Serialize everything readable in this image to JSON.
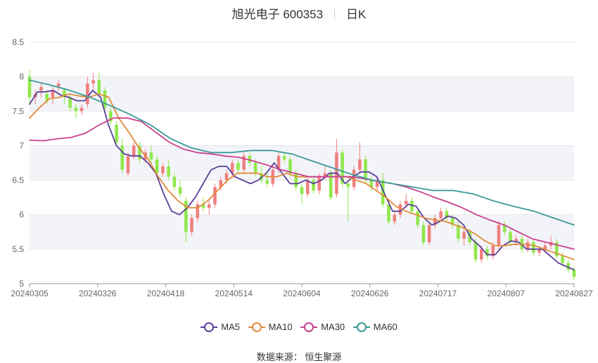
{
  "header": {
    "stock_name": "旭光电子 600353",
    "period": "日K"
  },
  "legend": [
    {
      "label": "MA5",
      "color": "#5b3f99"
    },
    {
      "label": "MA10",
      "color": "#e08a3a"
    },
    {
      "label": "MA30",
      "color": "#c9418f"
    },
    {
      "label": "MA60",
      "color": "#3a9a99"
    }
  ],
  "source": "数据来源： 恒生聚源",
  "colors": {
    "up": "#f07f7f",
    "down": "#8fe84a",
    "grid": "#e6e6e6",
    "band": "#f3f4f9",
    "axis": "#666666"
  },
  "chart_data": {
    "type": "candlestick",
    "ylim": [
      5,
      8.5
    ],
    "yticks": [
      "8.5",
      "8",
      "7.5",
      "7",
      "6.5",
      "6",
      "5.5",
      "5"
    ],
    "xticks": [
      "20240305",
      "20240326",
      "20240418",
      "20240514",
      "20240604",
      "20240626",
      "20240717",
      "20240807",
      "20240827"
    ],
    "ohlc": [
      [
        8.0,
        8.1,
        7.6,
        7.7
      ],
      [
        7.7,
        7.8,
        7.6,
        7.75
      ],
      [
        7.8,
        7.9,
        7.7,
        7.85
      ],
      [
        7.75,
        7.8,
        7.6,
        7.65
      ],
      [
        7.7,
        7.85,
        7.6,
        7.8
      ],
      [
        7.85,
        7.95,
        7.8,
        7.9
      ],
      [
        7.8,
        7.85,
        7.6,
        7.7
      ],
      [
        7.7,
        7.75,
        7.5,
        7.55
      ],
      [
        7.55,
        7.6,
        7.4,
        7.5
      ],
      [
        7.5,
        7.6,
        7.45,
        7.55
      ],
      [
        7.6,
        8.0,
        7.55,
        7.9
      ],
      [
        7.9,
        8.05,
        7.8,
        7.95
      ],
      [
        7.95,
        8.05,
        7.7,
        7.75
      ],
      [
        7.8,
        7.85,
        7.5,
        7.55
      ],
      [
        7.5,
        7.55,
        7.3,
        7.35
      ],
      [
        7.3,
        7.35,
        7.0,
        7.05
      ],
      [
        7.0,
        7.1,
        6.6,
        6.65
      ],
      [
        6.6,
        6.9,
        6.55,
        6.85
      ],
      [
        6.85,
        7.05,
        6.8,
        7.0
      ],
      [
        7.0,
        7.05,
        6.75,
        6.8
      ],
      [
        6.8,
        6.95,
        6.75,
        6.9
      ],
      [
        6.9,
        7.0,
        6.75,
        6.8
      ],
      [
        6.8,
        6.85,
        6.55,
        6.6
      ],
      [
        6.6,
        6.75,
        6.55,
        6.7
      ],
      [
        6.7,
        6.8,
        6.5,
        6.55
      ],
      [
        6.55,
        6.6,
        6.35,
        6.4
      ],
      [
        6.4,
        6.5,
        6.25,
        6.3
      ],
      [
        6.2,
        6.25,
        5.6,
        5.75
      ],
      [
        5.75,
        6.0,
        5.7,
        5.95
      ],
      [
        5.95,
        6.2,
        5.9,
        6.15
      ],
      [
        6.15,
        6.25,
        6.05,
        6.1
      ],
      [
        6.1,
        6.2,
        6.0,
        6.15
      ],
      [
        6.15,
        6.45,
        6.1,
        6.4
      ],
      [
        6.4,
        6.55,
        6.35,
        6.5
      ],
      [
        6.5,
        6.65,
        6.45,
        6.6
      ],
      [
        6.6,
        6.8,
        6.55,
        6.75
      ],
      [
        6.75,
        6.8,
        6.6,
        6.65
      ],
      [
        6.65,
        6.9,
        6.6,
        6.85
      ],
      [
        6.85,
        6.9,
        6.7,
        6.75
      ],
      [
        6.75,
        6.8,
        6.55,
        6.6
      ],
      [
        6.6,
        6.7,
        6.45,
        6.5
      ],
      [
        6.5,
        6.6,
        6.4,
        6.45
      ],
      [
        6.45,
        6.7,
        6.4,
        6.65
      ],
      [
        6.65,
        6.9,
        6.6,
        6.85
      ],
      [
        6.85,
        6.9,
        6.75,
        6.8
      ],
      [
        6.8,
        6.85,
        6.55,
        6.6
      ],
      [
        6.6,
        6.65,
        6.35,
        6.4
      ],
      [
        6.4,
        6.45,
        6.15,
        6.3
      ],
      [
        6.3,
        6.55,
        6.25,
        6.5
      ],
      [
        6.5,
        6.55,
        6.3,
        6.35
      ],
      [
        6.35,
        6.6,
        6.3,
        6.55
      ],
      [
        6.55,
        6.7,
        6.5,
        6.6
      ],
      [
        6.6,
        6.65,
        6.2,
        6.25
      ],
      [
        6.3,
        7.1,
        6.25,
        6.9
      ],
      [
        6.9,
        6.95,
        6.4,
        6.45
      ],
      [
        6.45,
        6.5,
        5.9,
        6.4
      ],
      [
        6.4,
        6.7,
        6.35,
        6.65
      ],
      [
        6.65,
        7.05,
        6.6,
        6.8
      ],
      [
        6.8,
        6.85,
        6.45,
        6.5
      ],
      [
        6.5,
        6.55,
        6.35,
        6.4
      ],
      [
        6.4,
        6.55,
        6.35,
        6.5
      ],
      [
        6.5,
        6.6,
        6.1,
        6.15
      ],
      [
        6.15,
        6.2,
        5.85,
        5.9
      ],
      [
        5.9,
        6.05,
        5.85,
        6.0
      ],
      [
        6.0,
        6.2,
        5.95,
        6.15
      ],
      [
        6.15,
        6.3,
        6.1,
        6.2
      ],
      [
        6.2,
        6.25,
        6.0,
        6.05
      ],
      [
        6.05,
        6.1,
        5.8,
        5.85
      ],
      [
        5.85,
        5.9,
        5.55,
        5.6
      ],
      [
        5.6,
        5.9,
        5.55,
        5.85
      ],
      [
        5.85,
        6.0,
        5.8,
        5.95
      ],
      [
        5.95,
        6.1,
        5.9,
        6.05
      ],
      [
        6.05,
        6.1,
        5.9,
        5.95
      ],
      [
        5.95,
        6.0,
        5.8,
        5.85
      ],
      [
        5.85,
        5.9,
        5.6,
        5.65
      ],
      [
        5.65,
        5.8,
        5.55,
        5.75
      ],
      [
        5.75,
        5.8,
        5.55,
        5.6
      ],
      [
        5.6,
        5.65,
        5.3,
        5.35
      ],
      [
        5.35,
        5.55,
        5.3,
        5.5
      ],
      [
        5.5,
        5.55,
        5.35,
        5.4
      ],
      [
        5.4,
        5.6,
        5.35,
        5.55
      ],
      [
        5.55,
        5.9,
        5.5,
        5.85
      ],
      [
        5.85,
        5.9,
        5.7,
        5.75
      ],
      [
        5.75,
        5.8,
        5.55,
        5.6
      ],
      [
        5.6,
        5.7,
        5.55,
        5.65
      ],
      [
        5.65,
        5.7,
        5.45,
        5.5
      ],
      [
        5.5,
        5.65,
        5.45,
        5.6
      ],
      [
        5.6,
        5.65,
        5.4,
        5.45
      ],
      [
        5.45,
        5.55,
        5.4,
        5.5
      ],
      [
        5.5,
        5.6,
        5.45,
        5.55
      ],
      [
        5.55,
        5.7,
        5.5,
        5.6
      ],
      [
        5.6,
        5.65,
        5.35,
        5.4
      ],
      [
        5.4,
        5.45,
        5.25,
        5.3
      ],
      [
        5.3,
        5.35,
        5.15,
        5.2
      ],
      [
        5.2,
        5.25,
        5.05,
        5.1
      ]
    ],
    "series": [
      {
        "name": "MA5",
        "color": "#5b3f99",
        "values": [
          7.6,
          7.78,
          7.78,
          7.8,
          7.73,
          7.7,
          7.65,
          7.65,
          7.8,
          7.7,
          7.3,
          7.0,
          6.88,
          6.85,
          6.85,
          6.75,
          6.6,
          6.3,
          6.05,
          6.0,
          6.1,
          6.25,
          6.45,
          6.65,
          6.7,
          6.7,
          6.55,
          6.5,
          6.45,
          6.5,
          6.6,
          6.75,
          6.6,
          6.45,
          6.45,
          6.5,
          6.45,
          6.5,
          6.6,
          6.6,
          6.45,
          6.55,
          6.62,
          6.62,
          6.55,
          6.3,
          6.05,
          6.05,
          6.15,
          6.12,
          5.95,
          5.85,
          5.9,
          5.98,
          5.95,
          5.85,
          5.65,
          5.55,
          5.42,
          5.42,
          5.55,
          5.62,
          5.6,
          5.5,
          5.5,
          5.5,
          5.4,
          5.3,
          5.25,
          5.2
        ]
      },
      {
        "name": "MA10",
        "color": "#e08a3a",
        "values": [
          7.4,
          7.55,
          7.68,
          7.7,
          7.75,
          7.72,
          7.7,
          7.75,
          7.7,
          7.4,
          7.2,
          6.98,
          6.8,
          6.55,
          6.35,
          6.2,
          6.1,
          6.1,
          6.2,
          6.35,
          6.5,
          6.6,
          6.6,
          6.6,
          6.55,
          6.55,
          6.6,
          6.55,
          6.55,
          6.55,
          6.55,
          6.55,
          6.55,
          6.5,
          6.45,
          6.35,
          6.25,
          6.12,
          6.05,
          6.0,
          5.95,
          5.92,
          5.9,
          5.85,
          5.8,
          5.72,
          5.62,
          5.55,
          5.55,
          5.57,
          5.57,
          5.55,
          5.5,
          5.45,
          5.4,
          5.35
        ]
      },
      {
        "name": "MA30",
        "color": "#c9418f",
        "values": [
          7.08,
          7.07,
          7.1,
          7.12,
          7.18,
          7.3,
          7.4,
          7.4,
          7.35,
          7.2,
          7.05,
          6.95,
          6.9,
          6.88,
          6.85,
          6.83,
          6.78,
          6.72,
          6.65,
          6.6,
          6.55,
          6.55,
          6.55,
          6.55,
          6.52,
          6.48,
          6.45,
          6.4,
          6.33,
          6.25,
          6.18,
          6.1,
          6.0,
          5.92,
          5.85,
          5.75,
          5.65,
          5.6,
          5.55,
          5.5
        ]
      },
      {
        "name": "MA60",
        "color": "#3a9a99",
        "values": [
          7.95,
          7.88,
          7.8,
          7.7,
          7.58,
          7.45,
          7.3,
          7.1,
          6.97,
          6.9,
          6.9,
          6.93,
          6.93,
          6.88,
          6.78,
          6.68,
          6.58,
          6.5,
          6.45,
          6.4,
          6.35,
          6.35,
          6.3,
          6.2,
          6.12,
          6.05,
          5.95,
          5.85
        ]
      }
    ]
  }
}
